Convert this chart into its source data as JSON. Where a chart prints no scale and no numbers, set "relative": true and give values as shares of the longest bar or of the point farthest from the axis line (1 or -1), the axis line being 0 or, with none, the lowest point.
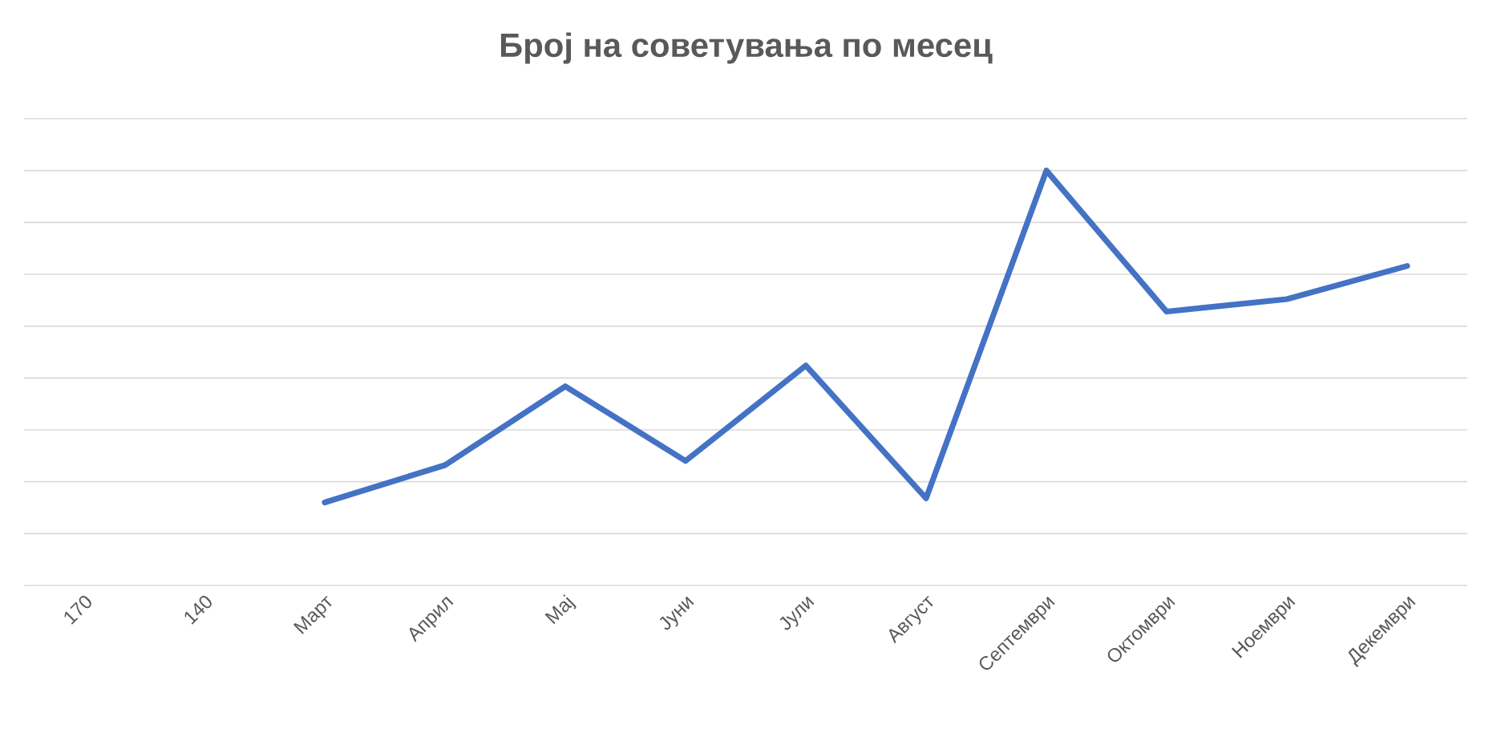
{
  "chart_data": {
    "type": "line",
    "title": "Број на советувања по месец",
    "categories": [
      "170",
      "140",
      "Март",
      "Април",
      "Мај",
      "Јуни",
      "Јули",
      "Август",
      "Септември",
      "Октомври",
      "Ноември",
      "Декември"
    ],
    "series": [
      {
        "color": "#4472c4",
        "values": [
          null,
          null,
          0.2,
          0.29,
          0.48,
          0.3,
          0.53,
          0.21,
          1,
          0.66,
          0.69,
          0.77
        ]
      }
    ],
    "relative": true,
    "grid": "y",
    "marker": "none",
    "line_style": "solid"
  }
}
